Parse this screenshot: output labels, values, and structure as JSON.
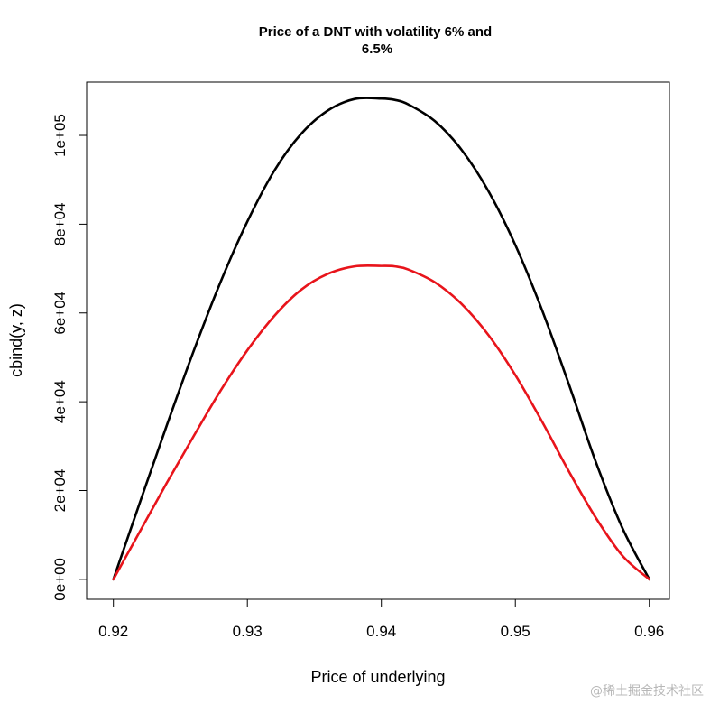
{
  "chart_data": {
    "type": "line",
    "title_line1": "Price of a DNT with volatility 6% and",
    "title_line2": "6.5%",
    "xlabel": "Price of underlying",
    "ylabel": "cbind(y, z)",
    "xlim": [
      0.918,
      0.9615
    ],
    "ylim": [
      -4500,
      112000
    ],
    "x_ticks": [
      0.92,
      0.93,
      0.94,
      0.95,
      0.96
    ],
    "x_tick_labels": [
      "0.92",
      "0.93",
      "0.94",
      "0.95",
      "0.96"
    ],
    "y_ticks": [
      0,
      20000,
      40000,
      60000,
      80000,
      100000
    ],
    "y_tick_labels": [
      "0e+00",
      "2e+04",
      "4e+04",
      "6e+04",
      "8e+04",
      "1e+05"
    ],
    "x": [
      0.92,
      0.922,
      0.924,
      0.926,
      0.928,
      0.93,
      0.932,
      0.934,
      0.936,
      0.938,
      0.94,
      0.941,
      0.942,
      0.944,
      0.946,
      0.948,
      0.95,
      0.952,
      0.954,
      0.956,
      0.958,
      0.96
    ],
    "series": [
      {
        "color": "#000000",
        "values": [
          0,
          17500,
          34800,
          51500,
          67000,
          80600,
          92000,
          100300,
          105600,
          108200,
          108300,
          108000,
          107000,
          103200,
          96700,
          87400,
          75300,
          60600,
          43900,
          26500,
          11500,
          0
        ]
      },
      {
        "color": "#e8141b",
        "values": [
          0,
          10900,
          21800,
          32300,
          42500,
          51600,
          59300,
          65200,
          68800,
          70500,
          70600,
          70500,
          69800,
          66900,
          62000,
          55000,
          46000,
          35500,
          24300,
          13900,
          5300,
          0
        ]
      }
    ]
  },
  "watermark": "@稀土掘金技术社区"
}
